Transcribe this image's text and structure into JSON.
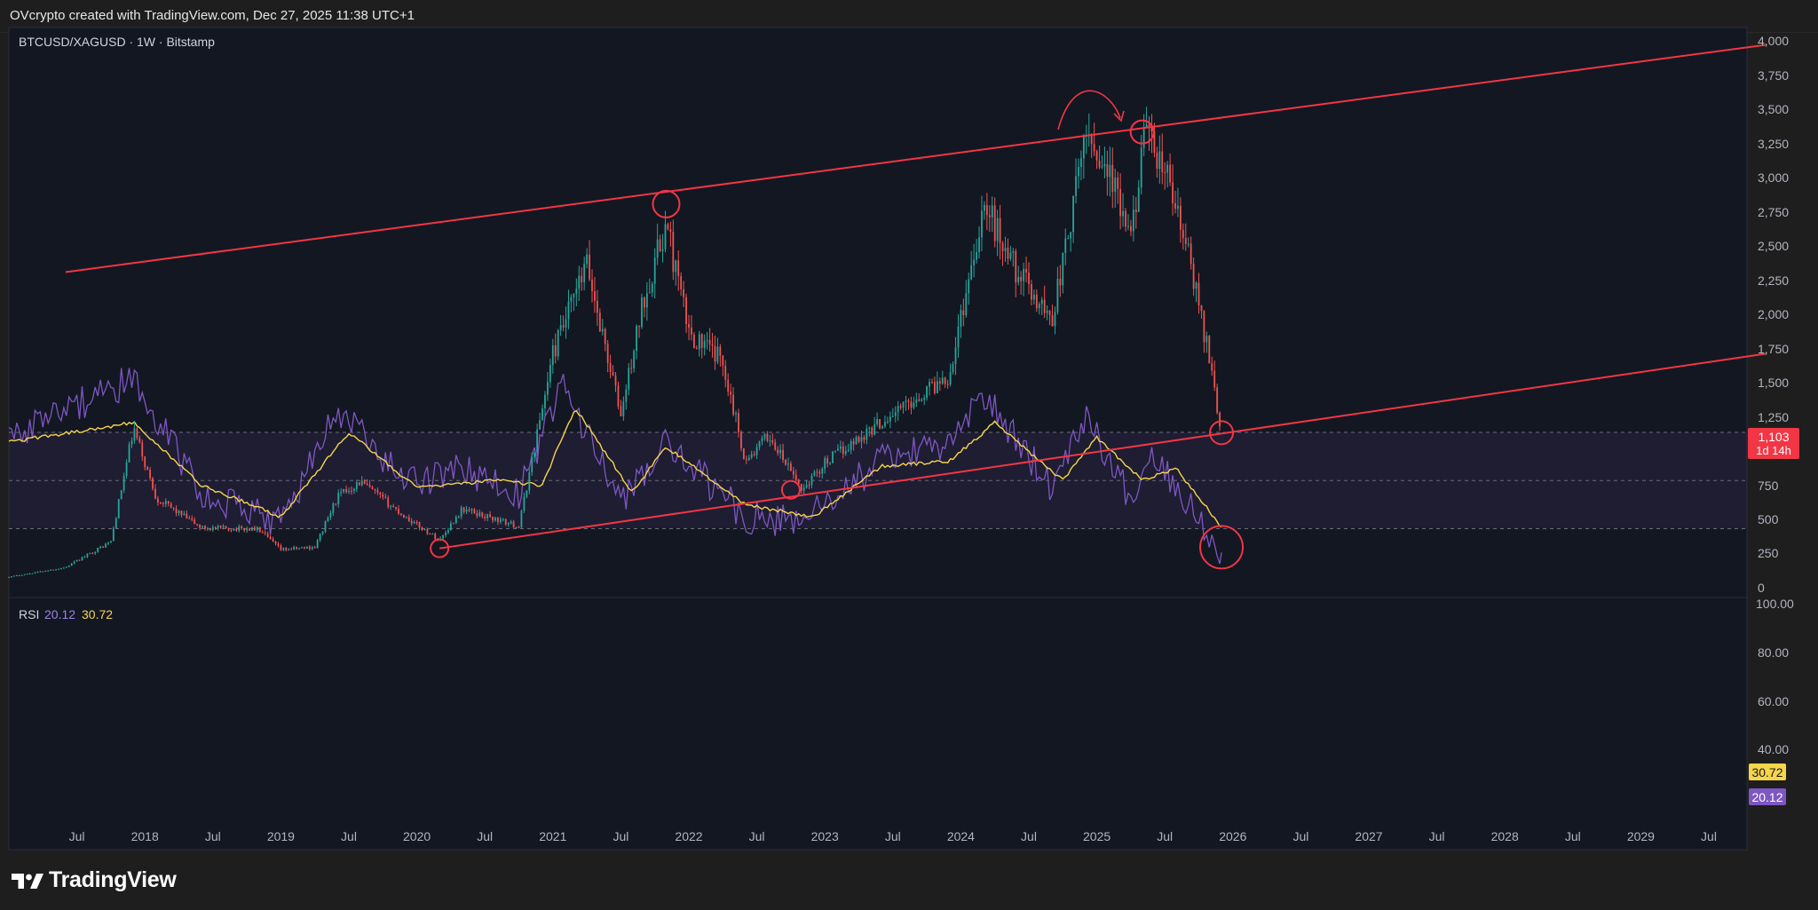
{
  "header": {
    "author_line": "OVcrypto created with TradingView.com, Dec 27, 2025 11:38 UTC+1"
  },
  "symbol": {
    "title": "BTCUSD/XAGUSD · 1W · Bitstamp"
  },
  "price_axis": {
    "ticks": [
      "4,000",
      "3,750",
      "3,500",
      "3,250",
      "3,000",
      "2,750",
      "2,500",
      "2,250",
      "2,000",
      "1,750",
      "1,500",
      "1,250",
      "750",
      "500",
      "250",
      "0"
    ],
    "last_price": "1,103",
    "countdown": "1d 14h"
  },
  "rsi": {
    "label": "RSI",
    "value": "20.12",
    "ma_value": "30.72",
    "ticks": [
      "100.00",
      "80.00",
      "60.00",
      "40.00"
    ]
  },
  "time_axis": {
    "labels": [
      "Jul",
      "2018",
      "Jul",
      "2019",
      "Jul",
      "2020",
      "Jul",
      "2021",
      "Jul",
      "2022",
      "Jul",
      "2023",
      "Jul",
      "2024",
      "Jul",
      "2025",
      "Jul",
      "2026",
      "Jul",
      "2027",
      "Jul",
      "2028",
      "Jul",
      "2029",
      "Jul"
    ]
  },
  "colors": {
    "background": "#131722",
    "up": "#26a69a",
    "down": "#ef5350",
    "annotation": "#f23645",
    "rsi_line": "#7e57c2",
    "rsi_ma": "#f7d54a",
    "rsi_band": "#7e57c2"
  },
  "branding": {
    "name": "TradingView"
  },
  "chart_data": [
    {
      "type": "candlestick",
      "title": "BTCUSD/XAGUSD · 1W · Bitstamp",
      "y_range": [
        0,
        4000
      ],
      "x_range": [
        "2017-01",
        "2029-12"
      ],
      "last_value": 1103,
      "approx_path": [
        {
          "t": "2017-01",
          "v": 60
        },
        {
          "t": "2017-06",
          "v": 130
        },
        {
          "t": "2017-10",
          "v": 320
        },
        {
          "t": "2017-12",
          "v": 1150
        },
        {
          "t": "2018-02",
          "v": 640
        },
        {
          "t": "2018-06",
          "v": 420
        },
        {
          "t": "2018-11",
          "v": 410
        },
        {
          "t": "2019-01",
          "v": 260
        },
        {
          "t": "2019-04",
          "v": 280
        },
        {
          "t": "2019-06",
          "v": 650
        },
        {
          "t": "2019-08",
          "v": 760
        },
        {
          "t": "2019-12",
          "v": 500
        },
        {
          "t": "2020-03",
          "v": 330
        },
        {
          "t": "2020-05",
          "v": 560
        },
        {
          "t": "2020-10",
          "v": 430
        },
        {
          "t": "2021-01",
          "v": 1700
        },
        {
          "t": "2021-04",
          "v": 2350
        },
        {
          "t": "2021-07",
          "v": 1250
        },
        {
          "t": "2021-09",
          "v": 2100
        },
        {
          "t": "2021-11",
          "v": 2650
        },
        {
          "t": "2022-01",
          "v": 1850
        },
        {
          "t": "2022-04",
          "v": 1650
        },
        {
          "t": "2022-06",
          "v": 900
        },
        {
          "t": "2022-08",
          "v": 1100
        },
        {
          "t": "2022-11",
          "v": 700
        },
        {
          "t": "2023-01",
          "v": 900
        },
        {
          "t": "2023-06",
          "v": 1200
        },
        {
          "t": "2023-12",
          "v": 1550
        },
        {
          "t": "2024-03",
          "v": 2800
        },
        {
          "t": "2024-06",
          "v": 2300
        },
        {
          "t": "2024-09",
          "v": 1950
        },
        {
          "t": "2024-11",
          "v": 2800
        },
        {
          "t": "2024-12",
          "v": 3350
        },
        {
          "t": "2025-02",
          "v": 3050
        },
        {
          "t": "2025-04",
          "v": 2500
        },
        {
          "t": "2025-05",
          "v": 3300
        },
        {
          "t": "2025-07",
          "v": 3050
        },
        {
          "t": "2025-09",
          "v": 2450
        },
        {
          "t": "2025-11",
          "v": 1650
        },
        {
          "t": "2025-12",
          "v": 1103
        }
      ],
      "annotations": {
        "upper_line": [
          {
            "t": "2017-06",
            "v": 2300
          },
          {
            "t": "2029-12",
            "v": 3970
          }
        ],
        "lower_line": [
          {
            "t": "2020-03",
            "v": 270
          },
          {
            "t": "2029-12",
            "v": 1700
          }
        ],
        "circles": [
          {
            "t": "2020-03",
            "v": 270
          },
          {
            "t": "2022-10",
            "v": 700
          },
          {
            "t": "2021-11",
            "v": 2800
          },
          {
            "t": "2025-05",
            "v": 3330
          },
          {
            "t": "2025-12",
            "v": 1120
          }
        ]
      }
    },
    {
      "type": "line",
      "title": "RSI",
      "y_range": [
        0,
        100
      ],
      "bands": [
        30,
        50,
        70
      ],
      "series": [
        {
          "name": "RSI",
          "last_value": 20.12,
          "approx_path": [
            {
              "t": "2017-01",
              "v": 68
            },
            {
              "t": "2017-12",
              "v": 92
            },
            {
              "t": "2018-06",
              "v": 45
            },
            {
              "t": "2019-01",
              "v": 32
            },
            {
              "t": "2019-06",
              "v": 80
            },
            {
              "t": "2019-12",
              "v": 48
            },
            {
              "t": "2020-05",
              "v": 55
            },
            {
              "t": "2020-10",
              "v": 45
            },
            {
              "t": "2021-02",
              "v": 90
            },
            {
              "t": "2021-07",
              "v": 40
            },
            {
              "t": "2021-11",
              "v": 65
            },
            {
              "t": "2022-06",
              "v": 35
            },
            {
              "t": "2022-11",
              "v": 33
            },
            {
              "t": "2023-06",
              "v": 58
            },
            {
              "t": "2023-12",
              "v": 65
            },
            {
              "t": "2024-03",
              "v": 85
            },
            {
              "t": "2024-09",
              "v": 48
            },
            {
              "t": "2024-12",
              "v": 78
            },
            {
              "t": "2025-04",
              "v": 42
            },
            {
              "t": "2025-06",
              "v": 62
            },
            {
              "t": "2025-10",
              "v": 35
            },
            {
              "t": "2025-12",
              "v": 20.12
            }
          ]
        },
        {
          "name": "RSI-based MA",
          "last_value": 30.72,
          "approx_path": [
            {
              "t": "2017-01",
              "v": 66
            },
            {
              "t": "2017-12",
              "v": 74
            },
            {
              "t": "2018-06",
              "v": 48
            },
            {
              "t": "2019-01",
              "v": 35
            },
            {
              "t": "2019-07",
              "v": 70
            },
            {
              "t": "2020-01",
              "v": 47
            },
            {
              "t": "2020-08",
              "v": 50
            },
            {
              "t": "2020-12",
              "v": 48
            },
            {
              "t": "2021-03",
              "v": 80
            },
            {
              "t": "2021-08",
              "v": 45
            },
            {
              "t": "2021-11",
              "v": 64
            },
            {
              "t": "2022-06",
              "v": 40
            },
            {
              "t": "2022-12",
              "v": 35
            },
            {
              "t": "2023-06",
              "v": 56
            },
            {
              "t": "2023-12",
              "v": 58
            },
            {
              "t": "2024-04",
              "v": 74
            },
            {
              "t": "2024-10",
              "v": 50
            },
            {
              "t": "2025-01",
              "v": 68
            },
            {
              "t": "2025-05",
              "v": 50
            },
            {
              "t": "2025-08",
              "v": 55
            },
            {
              "t": "2025-12",
              "v": 30.72
            }
          ]
        }
      ]
    }
  ]
}
